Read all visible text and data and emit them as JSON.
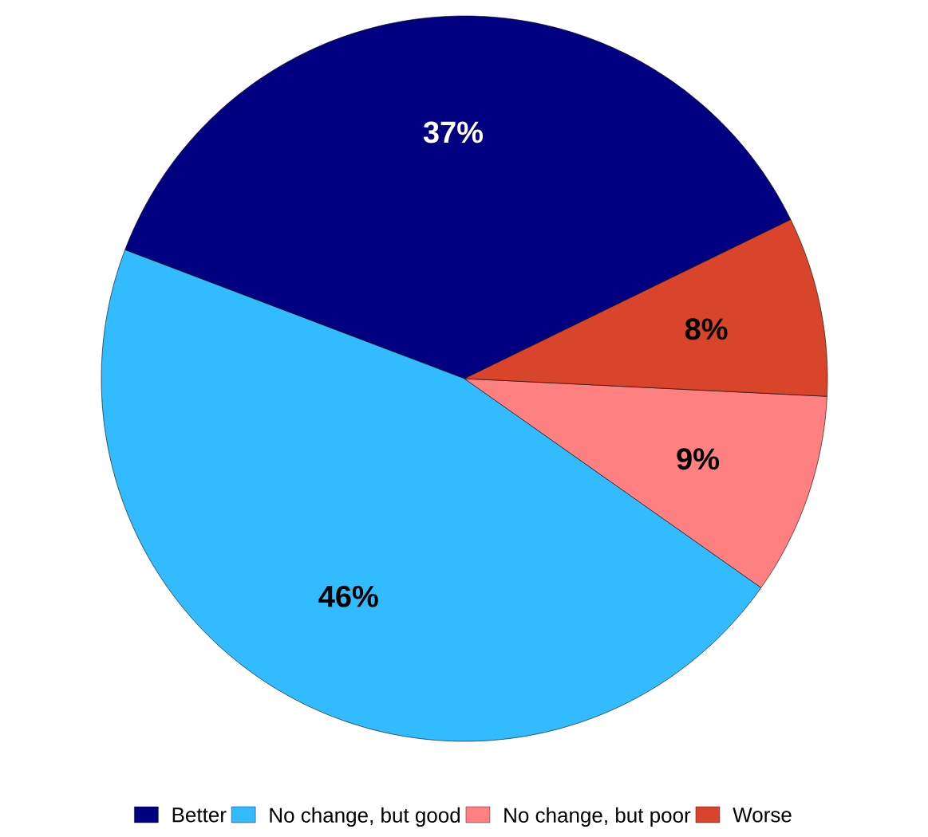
{
  "chart_data": {
    "type": "pie",
    "categories": [
      "Better",
      "No change, but good",
      "No change, but poor",
      "Worse"
    ],
    "values": [
      37,
      46,
      9,
      8
    ],
    "colors": [
      "#000080",
      "#33bbff",
      "#ff8080",
      "#d9452b"
    ],
    "value_labels": [
      "37%",
      "46%",
      "9%",
      "8%"
    ],
    "legend": "bottom"
  }
}
